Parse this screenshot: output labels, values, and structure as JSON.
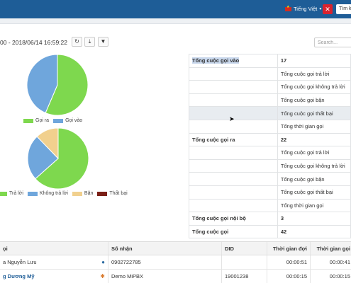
{
  "header": {
    "language": "Tiếng Việt",
    "search_button": "Tìm k"
  },
  "toolbar": {
    "date_range": "00 - 2018/06/14 16:59:22",
    "search_placeholder": "Search..."
  },
  "pie_charts": [
    {
      "legend": [
        {
          "label": "Gọi ra",
          "color": "#7ed84e"
        },
        {
          "label": "Gọi vào",
          "color": "#6fa6dc"
        }
      ],
      "values": [
        22,
        17
      ]
    },
    {
      "legend": [
        {
          "label": "Trả lời",
          "color": "#7ed84e"
        },
        {
          "label": "Không trả lời",
          "color": "#6fa6dc"
        },
        {
          "label": "Bận",
          "color": "#f1d08e"
        },
        {
          "label": "Thất bại",
          "color": "#7a1f16"
        }
      ],
      "values": [
        26,
        10,
        5,
        0
      ]
    }
  ],
  "stats": {
    "rows": [
      {
        "label": "Tổng cuộc gọi vào",
        "value": "17",
        "bold": true,
        "selected": true
      },
      {
        "label": "",
        "value": "Tổng cuộc gọi trả lời"
      },
      {
        "label": "",
        "value": "Tổng cuộc gọi không trả lời"
      },
      {
        "label": "",
        "value": "Tổng cuộc gọi bận"
      },
      {
        "label": "",
        "value": "Tổng cuộc gọi thất bại",
        "highlight": true
      },
      {
        "label": "",
        "value": "Tổng thời gian gọi"
      },
      {
        "label": "Tổng cuộc gọi ra",
        "value": "22",
        "bold": true
      },
      {
        "label": "",
        "value": "Tổng cuộc gọi trả lời"
      },
      {
        "label": "",
        "value": "Tổng cuộc gọi không trả lời"
      },
      {
        "label": "",
        "value": "Tổng cuộc gọi bận"
      },
      {
        "label": "",
        "value": "Tổng cuộc gọi thất bại"
      },
      {
        "label": "",
        "value": "Tổng thời gian gọi"
      },
      {
        "label": "Tổng cuộc gọi nội bộ",
        "value": "3",
        "bold": true
      },
      {
        "label": "Tổng cuộc gọi",
        "value": "42",
        "bold": true
      }
    ]
  },
  "calls_table": {
    "headers": [
      "ọi",
      "Số nhận",
      "DID",
      "Thời gian đợi",
      "Thời gian gọi"
    ],
    "rows": [
      {
        "caller": "a Nguyễn Lưu",
        "icon": "person",
        "receiver": "0902722785",
        "did": "",
        "wait": "00:00:51",
        "talk": "00:00:41"
      },
      {
        "caller": "g Dương Mỹ",
        "icon": "group",
        "receiver": "Demo MiPBX",
        "did": "19001238",
        "wait": "00:00:15",
        "talk": "00:00:15"
      }
    ]
  }
}
